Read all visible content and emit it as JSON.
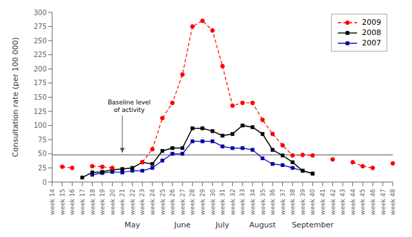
{
  "chart_data": {
    "type": "line",
    "categories": [
      "week 14",
      "week 15",
      "week 16",
      "week 17",
      "week 18",
      "week 19",
      "week 20",
      "week 21",
      "week 22",
      "week 23",
      "week 24",
      "week 25",
      "week 26",
      "week 27",
      "week 28",
      "week 29",
      "week 30",
      "week 31",
      "week 32",
      "week 33",
      "week 34",
      "week 35",
      "week 36",
      "week 37",
      "week 38",
      "week 39",
      "week 40",
      "week 41",
      "week 42",
      "week 43",
      "week 44",
      "week 45",
      "week 46",
      "week 47",
      "week 48"
    ],
    "series": [
      {
        "name": "2009",
        "color": "#ff0000",
        "line_style": "dashed",
        "marker": "circle",
        "values": [
          null,
          27,
          25,
          null,
          28,
          27,
          25,
          null,
          null,
          35,
          58,
          113,
          140,
          190,
          275,
          285,
          268,
          205,
          135,
          140,
          140,
          110,
          85,
          65,
          47,
          48,
          47,
          null,
          40,
          null,
          35,
          28,
          25,
          null,
          33
        ]
      },
      {
        "name": "2008",
        "color": "#000000",
        "line_style": "solid",
        "marker": "square",
        "values": [
          null,
          null,
          null,
          8,
          17,
          18,
          22,
          23,
          25,
          35,
          32,
          55,
          60,
          60,
          95,
          95,
          90,
          82,
          85,
          100,
          97,
          85,
          57,
          47,
          35,
          20,
          15,
          null,
          null,
          null,
          null,
          null,
          null,
          null,
          null
        ]
      },
      {
        "name": "2007",
        "color": "#0000aa",
        "line_style": "solid",
        "marker": "square",
        "values": [
          null,
          null,
          null,
          null,
          13,
          16,
          18,
          17,
          20,
          20,
          25,
          38,
          50,
          50,
          72,
          72,
          72,
          63,
          60,
          60,
          57,
          42,
          32,
          30,
          25,
          20,
          15,
          null,
          null,
          null,
          null,
          null,
          null,
          null,
          null
        ]
      }
    ],
    "ylabel": "Consultation rate (per 100 000)",
    "ylim": [
      0,
      300
    ],
    "yticks": [
      0,
      25,
      50,
      75,
      100,
      125,
      150,
      175,
      200,
      225,
      250,
      275,
      300
    ],
    "grid": false,
    "legend": "upper right",
    "reference_lines": [
      {
        "y": 48,
        "color": "#555555"
      }
    ],
    "annotations": [
      {
        "text": "Baseline level\nof activity",
        "x": "week 21",
        "y": 148,
        "arrow_y": 52
      }
    ],
    "month_labels": [
      {
        "label": "May",
        "x": "week 22"
      },
      {
        "label": "June",
        "x": "week 27"
      },
      {
        "label": "July",
        "x": "week 31"
      },
      {
        "label": "August",
        "x": "week 35"
      },
      {
        "label": "September",
        "x": "week 40"
      }
    ]
  }
}
